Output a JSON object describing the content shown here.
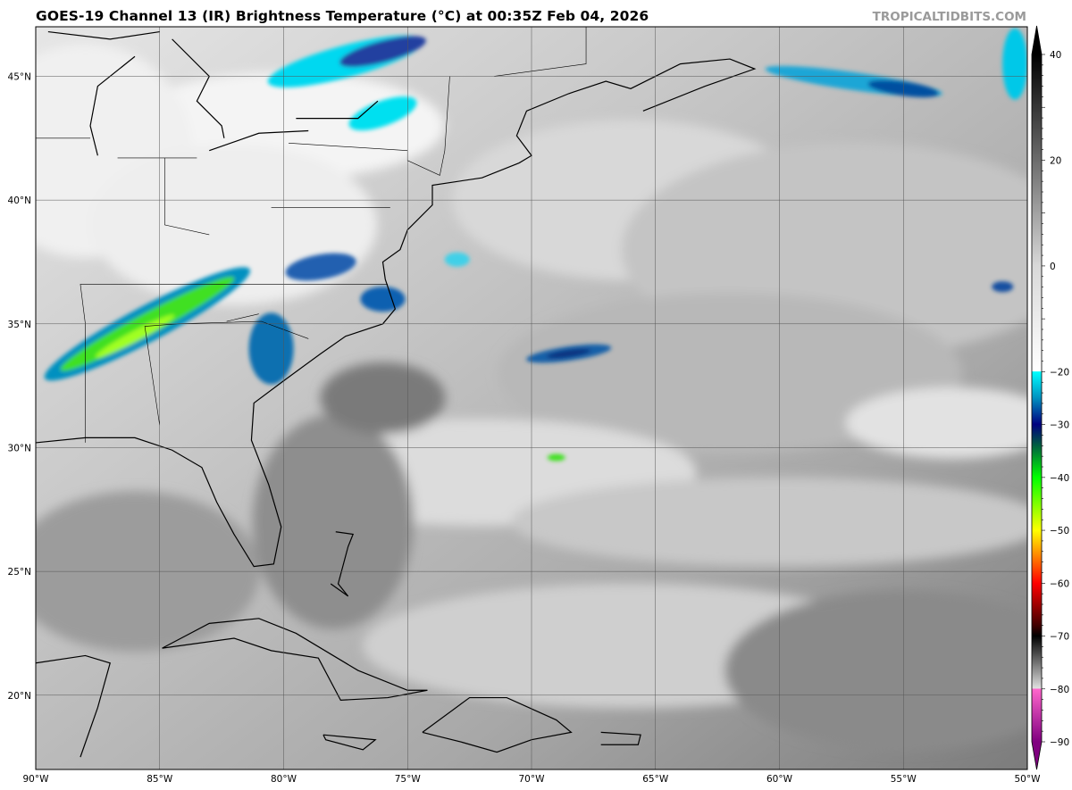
{
  "title": "GOES-19 Channel 13 (IR) Brightness Temperature (°C) at 00:35Z Feb 04, 2026",
  "watermark": "TROPICALTIDBITS.COM",
  "map": {
    "lon_range": [
      -90,
      -50
    ],
    "lat_range": [
      17,
      47
    ],
    "lat_ticks": [
      {
        "v": 45,
        "label": "45°N"
      },
      {
        "v": 40,
        "label": "40°N"
      },
      {
        "v": 35,
        "label": "35°N"
      },
      {
        "v": 30,
        "label": "30°N"
      },
      {
        "v": 25,
        "label": "25°N"
      },
      {
        "v": 20,
        "label": "20°N"
      }
    ],
    "lon_ticks": [
      {
        "v": -90,
        "label": "90°W"
      },
      {
        "v": -85,
        "label": "85°W"
      },
      {
        "v": -80,
        "label": "80°W"
      },
      {
        "v": -75,
        "label": "75°W"
      },
      {
        "v": -70,
        "label": "70°W"
      },
      {
        "v": -65,
        "label": "65°W"
      },
      {
        "v": -60,
        "label": "60°W"
      },
      {
        "v": -55,
        "label": "55°W"
      },
      {
        "v": -50,
        "label": "50°W"
      }
    ],
    "gridlines": true
  },
  "colorbar": {
    "range": [
      -90,
      40
    ],
    "ticks": [
      {
        "v": 40,
        "label": "40"
      },
      {
        "v": 20,
        "label": "20"
      },
      {
        "v": 0,
        "label": "0"
      },
      {
        "v": -20,
        "label": "−20"
      },
      {
        "v": -30,
        "label": "−30"
      },
      {
        "v": -40,
        "label": "−40"
      },
      {
        "v": -50,
        "label": "−50"
      },
      {
        "v": -60,
        "label": "−60"
      },
      {
        "v": -70,
        "label": "−70"
      },
      {
        "v": -80,
        "label": "−80"
      },
      {
        "v": -90,
        "label": "−90"
      }
    ],
    "stops": [
      {
        "v": 40,
        "color": "#000000"
      },
      {
        "v": 0,
        "color": "#d8d8d8"
      },
      {
        "v": -19.9,
        "color": "#ffffff"
      },
      {
        "v": -20,
        "color": "#00ffff"
      },
      {
        "v": -25,
        "color": "#0090c0"
      },
      {
        "v": -30,
        "color": "#000080"
      },
      {
        "v": -34,
        "color": "#006040"
      },
      {
        "v": -40,
        "color": "#00ff00"
      },
      {
        "v": -50,
        "color": "#ffff00"
      },
      {
        "v": -55,
        "color": "#ff8000"
      },
      {
        "v": -60,
        "color": "#ff0000"
      },
      {
        "v": -68,
        "color": "#400000"
      },
      {
        "v": -70,
        "color": "#000000"
      },
      {
        "v": -79.9,
        "color": "#e0e0e0"
      },
      {
        "v": -80,
        "color": "#ff66cc"
      },
      {
        "v": -90,
        "color": "#800080"
      }
    ]
  }
}
